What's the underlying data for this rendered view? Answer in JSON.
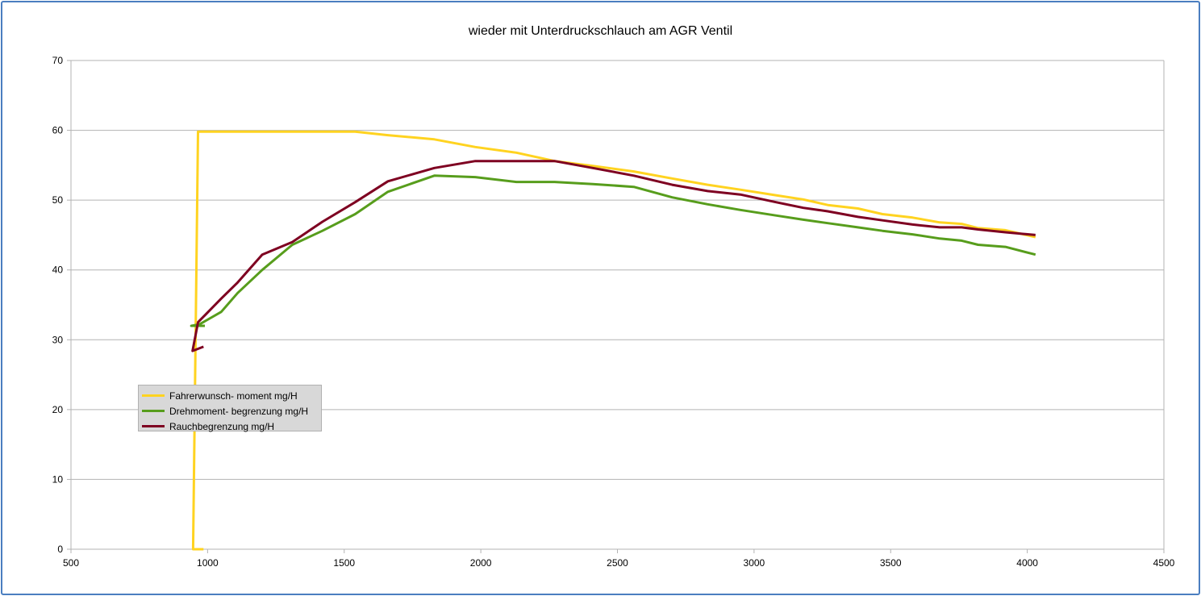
{
  "chart_data": {
    "type": "line",
    "title": "wieder mit Unterdruckschlauch am AGR Ventil",
    "xlabel": "",
    "ylabel": "",
    "xlim": [
      500,
      4500
    ],
    "ylim": [
      0,
      70
    ],
    "x_ticks": [
      500,
      1000,
      1500,
      2000,
      2500,
      3000,
      3500,
      4000,
      4500
    ],
    "y_ticks": [
      0,
      10,
      20,
      30,
      40,
      50,
      60,
      70
    ],
    "grid": "horizontal",
    "legend_position": "left-middle",
    "series": [
      {
        "name": "Fahrerwunsch- moment  mg/H",
        "color": "#ffd320",
        "x": [
          985,
          947,
          965,
          1050,
          1200,
          1350,
          1540,
          1660,
          1830,
          1980,
          2130,
          2270,
          2410,
          2560,
          2700,
          2830,
          2950,
          3080,
          3180,
          3270,
          3380,
          3470,
          3580,
          3680,
          3760,
          3820,
          3920,
          4030
        ],
        "y": [
          0,
          0,
          59.8,
          59.8,
          59.8,
          59.8,
          59.8,
          59.3,
          58.7,
          57.6,
          56.8,
          55.6,
          54.9,
          54.1,
          53.1,
          52.2,
          51.5,
          50.7,
          50.1,
          49.3,
          48.8,
          48.0,
          47.5,
          46.8,
          46.6,
          46.0,
          45.7,
          44.7
        ]
      },
      {
        "name": "Drehmoment- begrenzung  mg/H",
        "color": "#579d1c",
        "x": [
          990,
          940,
          970,
          1050,
          1110,
          1200,
          1310,
          1420,
          1540,
          1660,
          1830,
          1980,
          2130,
          2270,
          2410,
          2560,
          2700,
          2830,
          2950,
          3080,
          3180,
          3270,
          3380,
          3470,
          3580,
          3680,
          3760,
          3820,
          3920,
          4030
        ],
        "y": [
          32.0,
          32.0,
          32.2,
          34.0,
          36.7,
          40.0,
          43.6,
          45.6,
          48.0,
          51.2,
          53.5,
          53.3,
          52.6,
          52.6,
          52.3,
          51.9,
          50.4,
          49.4,
          48.6,
          47.8,
          47.2,
          46.7,
          46.1,
          45.6,
          45.1,
          44.5,
          44.2,
          43.6,
          43.3,
          42.2
        ]
      },
      {
        "name": "Rauchbegrenzung   mg/H",
        "color": "#7e0021",
        "x": [
          985,
          945,
          965,
          1050,
          1110,
          1200,
          1310,
          1420,
          1540,
          1660,
          1830,
          1980,
          2130,
          2270,
          2410,
          2560,
          2700,
          2830,
          2950,
          3080,
          3180,
          3270,
          3380,
          3470,
          3580,
          3680,
          3760,
          3820,
          3920,
          4030
        ],
        "y": [
          29.0,
          28.4,
          32.5,
          35.9,
          38.2,
          42.2,
          44.0,
          46.9,
          49.7,
          52.7,
          54.6,
          55.6,
          55.6,
          55.6,
          54.6,
          53.5,
          52.2,
          51.3,
          50.8,
          49.7,
          48.9,
          48.4,
          47.6,
          47.1,
          46.5,
          46.1,
          46.1,
          45.8,
          45.4,
          45.0
        ]
      }
    ]
  }
}
